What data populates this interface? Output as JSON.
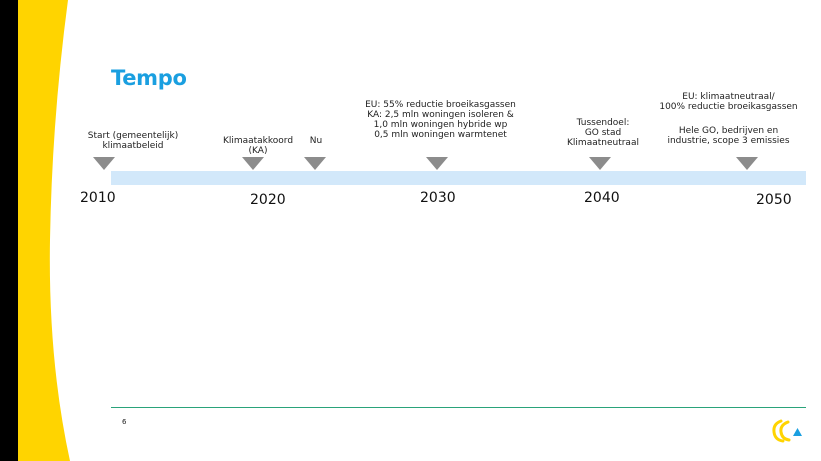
{
  "slide": {
    "title": "Tempo",
    "page_number": "6",
    "milestones": [
      {
        "label": "Start (gemeentelijk)\nklimaatbeleid"
      },
      {
        "label": "Klimaatakkoord\n(KA)"
      },
      {
        "label": "Nu"
      },
      {
        "label": "EU: 55% reductie broeikasgassen\nKA: 2,5 mln woningen isoleren &\n1,0 mln woningen hybride wp\n0,5 mln woningen warmtenet"
      },
      {
        "label": "Tussendoel:\nGO stad\nKlimaatneutraal"
      },
      {
        "label_top": "EU: klimaatneutraal/\n100% reductie broeikasgassen",
        "label_bottom": "Hele GO, bedrijven en\nindustrie, scope 3 emissies"
      }
    ],
    "years": [
      "2010",
      "2020",
      "2030",
      "2040",
      "2050"
    ]
  },
  "colors": {
    "title": "#1a9fe0",
    "timeline_bar": "#d2e8fa",
    "marker": "#8c8c8c",
    "accent_yellow": "#ffd400",
    "footer_line": "#2aa37a"
  }
}
